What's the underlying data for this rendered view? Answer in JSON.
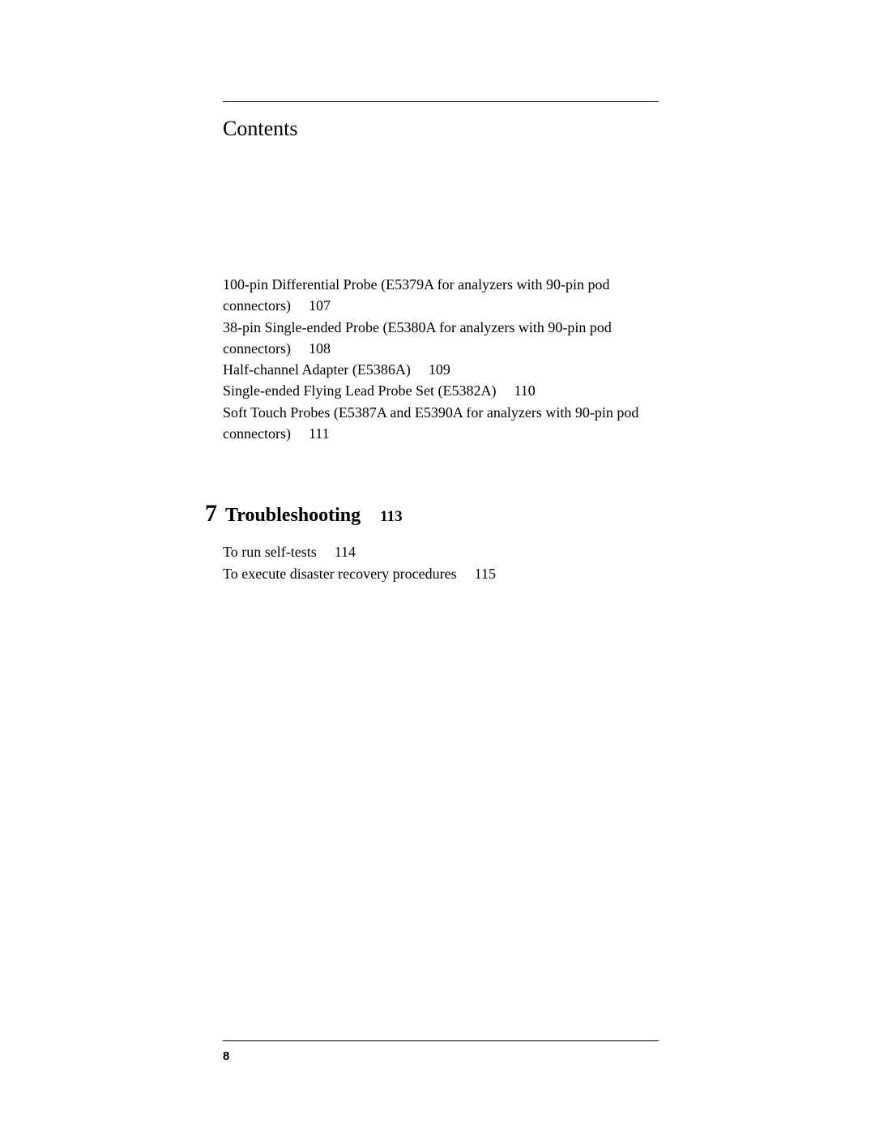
{
  "heading": "Contents",
  "toc_block": [
    {
      "text": "100-pin Differential Probe (E5379A for analyzers with 90-pin pod",
      "page": ""
    },
    {
      "text": "connectors)",
      "page": "107"
    },
    {
      "text": "38-pin Single-ended Probe (E5380A for analyzers with 90-pin pod",
      "page": ""
    },
    {
      "text": "connectors)",
      "page": "108"
    },
    {
      "text": "Half-channel Adapter (E5386A)",
      "page": "109"
    },
    {
      "text": "Single-ended Flying Lead Probe Set (E5382A)",
      "page": "110"
    },
    {
      "text": "Soft Touch Probes (E5387A and E5390A for analyzers with 90-pin pod",
      "page": ""
    },
    {
      "text": "connectors)",
      "page": "111"
    }
  ],
  "chapter": {
    "number": "7",
    "title": "Troubleshooting",
    "page": "113"
  },
  "subitems": [
    {
      "text": "To run self-tests",
      "page": "114"
    },
    {
      "text": "To execute disaster recovery procedures",
      "page": "115"
    }
  ],
  "page_number": "8"
}
